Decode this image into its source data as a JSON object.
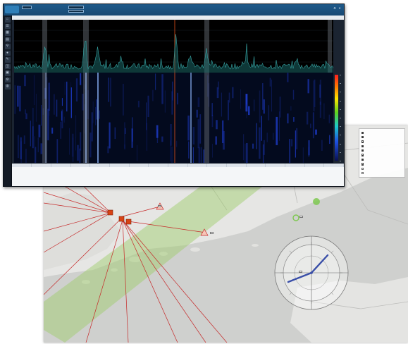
{
  "spectrum_window": {
    "title_bar": {
      "logo": "",
      "fields_left": [
        "",
        ""
      ],
      "fields_mid_labels": [
        "",
        ""
      ],
      "fields_right_labels": [
        "",
        ""
      ]
    },
    "sub_bar": "",
    "toolbar_icons": [
      "home-icon",
      "list-icon",
      "chart-icon",
      "grid-icon",
      "filter-icon",
      "record-icon",
      "edit-icon",
      "layers-icon",
      "map-icon",
      "gear-icon",
      "globe-icon"
    ],
    "table": {
      "headers": [
        "",
        "",
        "",
        "",
        "",
        "",
        "",
        "",
        "",
        "",
        "",
        "",
        "",
        "",
        "",
        "",
        ""
      ],
      "rows": [
        [
          "",
          "",
          "",
          "",
          "",
          "",
          "",
          "",
          "",
          "",
          "",
          "",
          "",
          "",
          "",
          "",
          ""
        ],
        [
          "",
          "",
          "",
          "",
          "",
          "",
          "",
          "",
          "",
          "",
          "",
          "",
          "",
          "",
          "",
          "",
          ""
        ],
        [
          "",
          "",
          "",
          "",
          "",
          "",
          "",
          "",
          "",
          "",
          "",
          "",
          "",
          "",
          "",
          "",
          ""
        ],
        [
          "",
          "",
          "",
          "",
          "",
          "",
          "",
          "",
          "",
          "",
          "",
          "",
          "",
          "",
          "",
          "",
          ""
        ],
        [
          "",
          "",
          "",
          "",
          "",
          "",
          "",
          "",
          "",
          "",
          "",
          "",
          "",
          "",
          "",
          "",
          ""
        ]
      ]
    },
    "colors": {
      "title": "#1e5a8a",
      "trace": "#3fb4b4",
      "waterfall_bg": "#030a1e",
      "marker": "#ff5a1e"
    }
  },
  "map_window": {
    "layers": [
      {
        "label": "",
        "checked": true
      },
      {
        "label": "",
        "checked": true
      },
      {
        "label": "",
        "checked": true
      },
      {
        "label": "",
        "checked": true
      },
      {
        "label": "",
        "checked": true
      },
      {
        "label": "",
        "checked": true
      },
      {
        "label": "",
        "checked": true
      },
      {
        "label": "",
        "checked": true
      },
      {
        "label": "",
        "checked": false
      },
      {
        "label": "",
        "checked": false
      }
    ],
    "labels": {
      "station_a": "",
      "station_b": "",
      "target_1": "",
      "target_2": "",
      "compass_center": ""
    },
    "colors": {
      "bearing_line": "#c62828",
      "sector": "#9ccc65",
      "compass_needle": "#3a4fa8",
      "station": "#d84315"
    }
  }
}
